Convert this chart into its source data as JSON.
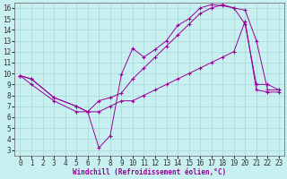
{
  "xlabel": "Windchill (Refroidissement éolien,°C)",
  "background_color": "#c8f0f0",
  "grid_color": "#a8d8d8",
  "line_color": "#990099",
  "xlim": [
    -0.5,
    23.5
  ],
  "ylim": [
    2.5,
    16.5
  ],
  "xticks": [
    0,
    1,
    2,
    3,
    4,
    5,
    6,
    7,
    8,
    9,
    10,
    11,
    12,
    13,
    14,
    15,
    16,
    17,
    18,
    19,
    20,
    21,
    22,
    23
  ],
  "yticks": [
    3,
    4,
    5,
    6,
    7,
    8,
    9,
    10,
    11,
    12,
    13,
    14,
    15,
    16
  ],
  "curve1_x": [
    0,
    1,
    3,
    5,
    6,
    7,
    8,
    9,
    10,
    11,
    12,
    13,
    14,
    15,
    16,
    17,
    18,
    19,
    20,
    21,
    22,
    23
  ],
  "curve1_y": [
    9.8,
    9.0,
    7.5,
    6.5,
    6.5,
    3.2,
    4.3,
    9.9,
    12.3,
    11.5,
    12.2,
    13.0,
    14.4,
    15.0,
    16.0,
    16.3,
    16.2,
    16.0,
    15.8,
    13.0,
    8.5,
    8.5
  ],
  "curve2_x": [
    0,
    1,
    3,
    5,
    6,
    7,
    8,
    9,
    10,
    11,
    12,
    13,
    14,
    15,
    16,
    17,
    18,
    19,
    20,
    21,
    22,
    23
  ],
  "curve2_y": [
    9.8,
    9.5,
    7.8,
    7.0,
    6.5,
    6.5,
    7.0,
    7.5,
    7.5,
    8.0,
    8.5,
    9.0,
    9.5,
    10.0,
    10.5,
    11.0,
    11.5,
    12.0,
    14.8,
    8.5,
    8.3,
    8.3
  ],
  "curve3_x": [
    0,
    1,
    3,
    5,
    6,
    7,
    8,
    9,
    10,
    11,
    12,
    13,
    14,
    15,
    16,
    17,
    18,
    19,
    20,
    21,
    22,
    23
  ],
  "curve3_y": [
    9.8,
    9.5,
    7.8,
    7.0,
    6.5,
    7.5,
    7.8,
    8.2,
    9.5,
    10.5,
    11.5,
    12.5,
    13.5,
    14.5,
    15.5,
    16.0,
    16.3,
    16.0,
    14.5,
    9.0,
    9.0,
    8.5
  ],
  "xlabel_fontsize": 5.5,
  "tick_fontsize": 5.5,
  "lw": 0.7,
  "ms": 2.5
}
